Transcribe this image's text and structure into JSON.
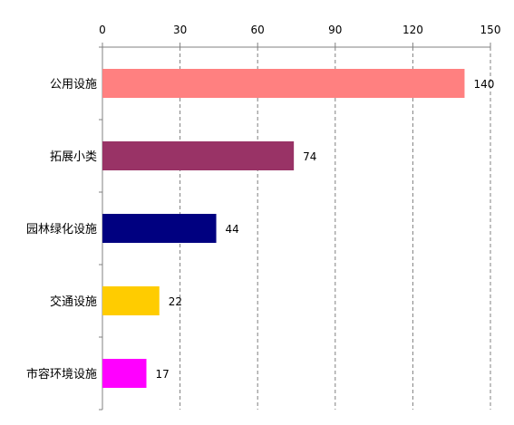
{
  "chart_data": {
    "type": "bar",
    "orientation": "horizontal",
    "categories": [
      "公用设施",
      "拓展小类",
      "园林绿化设施",
      "交通设施",
      "市容环境设施"
    ],
    "values": [
      140,
      74,
      44,
      22,
      17
    ],
    "colors": [
      "#ff8080",
      "#993366",
      "#000080",
      "#ffcc00",
      "#ff00ff"
    ],
    "title": "",
    "xlabel": "",
    "ylabel": "",
    "xlim": [
      0,
      150
    ],
    "x_ticks": [
      0,
      30,
      60,
      90,
      120,
      150
    ],
    "x_axis_position": "top",
    "grid": "vertical dashed",
    "legend": "none",
    "data_labels": [
      "140",
      "74",
      "44",
      "22",
      "17"
    ]
  }
}
